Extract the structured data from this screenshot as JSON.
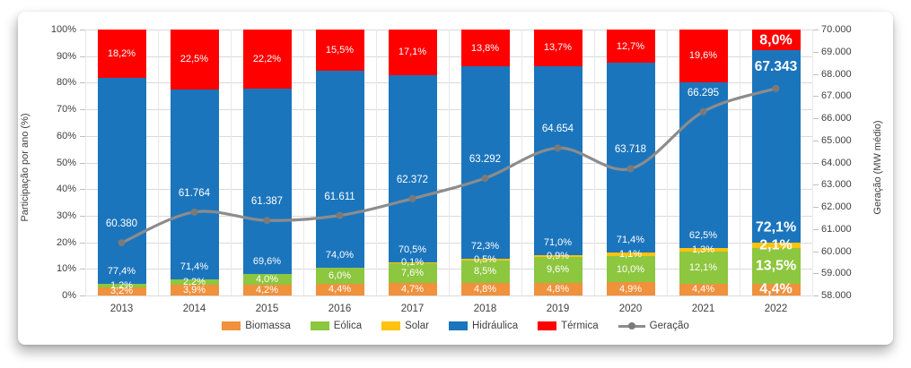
{
  "chart_data": {
    "type": "bar",
    "subtype": "100%-stacked-column-with-secondary-line",
    "categories": [
      "2013",
      "2014",
      "2015",
      "2016",
      "2017",
      "2018",
      "2019",
      "2020",
      "2021",
      "2022"
    ],
    "series": [
      {
        "name": "Biomassa",
        "color": "#F0913C",
        "values": [
          3.2,
          3.9,
          4.2,
          4.4,
          4.7,
          4.8,
          4.8,
          4.9,
          4.4,
          4.4
        ],
        "labels": [
          "3,2%",
          "3,9%",
          "4,2%",
          "4,4%",
          "4,7%",
          "4,8%",
          "4,8%",
          "4,9%",
          "4,4%",
          "4,4%"
        ]
      },
      {
        "name": "Eólica",
        "color": "#8DC63F",
        "values": [
          1.2,
          2.2,
          4.0,
          6.0,
          7.6,
          8.5,
          9.6,
          10.0,
          12.1,
          13.5
        ],
        "labels": [
          "1,2%",
          "2,2%",
          "4,0%",
          "6,0%",
          "7,6%",
          "8,5%",
          "9,6%",
          "10,0%",
          "12,1%",
          "13,5%"
        ]
      },
      {
        "name": "Solar",
        "color": "#FFC20E",
        "values": [
          0,
          0,
          0,
          0,
          0.1,
          0.5,
          0.9,
          1.1,
          1.3,
          2.1
        ],
        "labels": [
          null,
          null,
          null,
          null,
          "0,1%",
          "0,5%",
          "0,9%",
          "1,1%",
          "1,3%",
          "2,1%"
        ]
      },
      {
        "name": "Hidráulica",
        "color": "#1B75BC",
        "values": [
          77.4,
          71.4,
          69.6,
          74.0,
          70.5,
          72.3,
          71.0,
          71.4,
          62.5,
          72.1
        ],
        "labels": [
          "77,4%",
          "71,4%",
          "69,6%",
          "74,0%",
          "70,5%",
          "72,3%",
          "71,0%",
          "71,4%",
          "62,5%",
          "72,1%"
        ]
      },
      {
        "name": "Térmica",
        "color": "#FF0000",
        "values": [
          18.2,
          22.5,
          22.2,
          15.5,
          17.1,
          13.8,
          13.7,
          12.7,
          19.6,
          8.0
        ],
        "labels": [
          "18,2%",
          "22,5%",
          "22,2%",
          "15,5%",
          "17,1%",
          "13,8%",
          "13,7%",
          "12,7%",
          "19,6%",
          "8,0%"
        ]
      }
    ],
    "line": {
      "name": "Geração",
      "color": "#8C8C8C",
      "marker_color": "#7A7A7A",
      "values": [
        60380,
        61764,
        61387,
        61611,
        62372,
        63292,
        64654,
        63718,
        66295,
        67343
      ],
      "labels": [
        "60.380",
        "61.764",
        "61.387",
        "61.611",
        "62.372",
        "63.292",
        "64.654",
        "63.718",
        "66.295",
        "67.343"
      ]
    },
    "left_axis": {
      "title": "Participação por ano (%)",
      "min": 0,
      "max": 100,
      "step": 10,
      "ticks": [
        "0%",
        "10%",
        "20%",
        "30%",
        "40%",
        "50%",
        "60%",
        "70%",
        "80%",
        "90%",
        "100%"
      ]
    },
    "right_axis": {
      "title": "Geração (MW médio)",
      "min": 58000,
      "max": 70000,
      "step": 1000,
      "ticks": [
        "58.000",
        "59.000",
        "60.000",
        "61.000",
        "62.000",
        "63.000",
        "64.000",
        "65.000",
        "66.000",
        "67.000",
        "68.000",
        "69.000",
        "70.000"
      ]
    },
    "legend": [
      {
        "label": "Biomassa",
        "color": "#F0913C",
        "type": "swatch"
      },
      {
        "label": "Eólica",
        "color": "#8DC63F",
        "type": "swatch"
      },
      {
        "label": "Solar",
        "color": "#FFC20E",
        "type": "swatch"
      },
      {
        "label": "Hidráulica",
        "color": "#1B75BC",
        "type": "swatch"
      },
      {
        "label": "Térmica",
        "color": "#FF0000",
        "type": "swatch"
      },
      {
        "label": "Geração",
        "color": "#8C8C8C",
        "type": "line"
      }
    ],
    "legend_position": "bottom",
    "grid": {
      "horizontal": true,
      "vertical": true
    },
    "emphasized_category_index": 9,
    "label_text_color": "#FFFFFF",
    "axis_text_color": "#404040",
    "gridline_color": "#DADADA"
  }
}
